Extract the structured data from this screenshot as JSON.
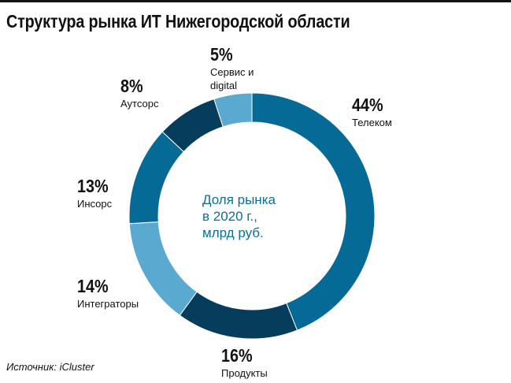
{
  "title": "Структура рынка ИТ Нижегородской области",
  "source": "Источник: iCluster",
  "colors": {
    "dark": "#063d5c",
    "mid": "#066a96",
    "light": "#5aa9d1",
    "center_text": "#0d6e97"
  },
  "chart_data": {
    "type": "pie",
    "variant": "donut",
    "title": "Структура рынка ИТ Нижегородской области",
    "center_label": [
      "Доля рынка",
      "в 2020 г.,",
      "млрд руб."
    ],
    "slices": [
      {
        "label": "Телеком",
        "value": 44,
        "value_label": "44%",
        "color": "#066a96"
      },
      {
        "label": "Продукты",
        "value": 16,
        "value_label": "16%",
        "color": "#063d5c"
      },
      {
        "label": "Интеграторы",
        "value": 14,
        "value_label": "14%",
        "color": "#5aa9d1"
      },
      {
        "label": "Инсорс",
        "value": 13,
        "value_label": "13%",
        "color": "#066a96"
      },
      {
        "label": "Аутсорс",
        "value": 8,
        "value_label": "8%",
        "color": "#063d5c"
      },
      {
        "label": "Сервис и digital",
        "value": 5,
        "value_label": "5%",
        "color": "#5aa9d1"
      }
    ]
  }
}
